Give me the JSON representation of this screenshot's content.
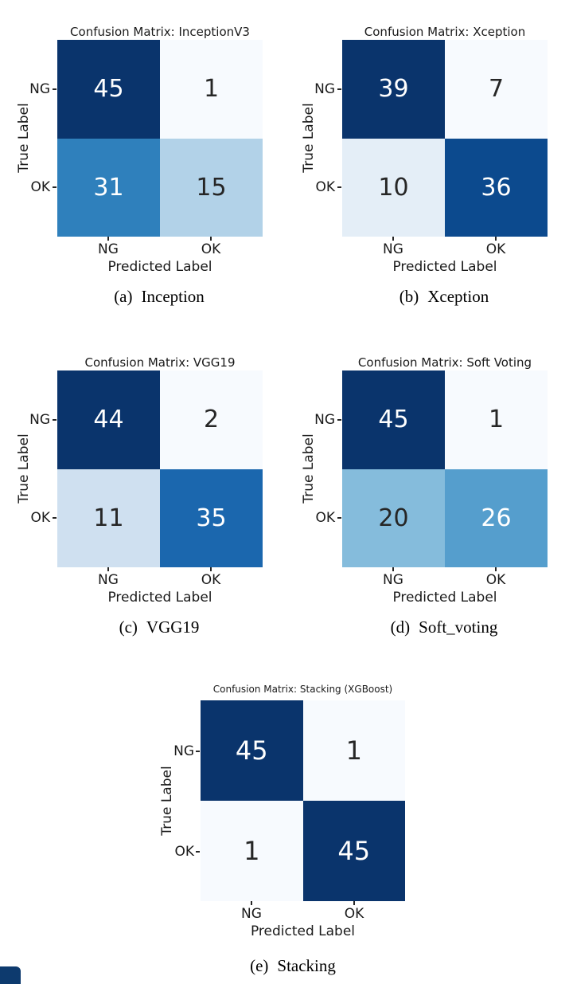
{
  "figure": {
    "background": "#ffffff",
    "axis_text_color": "#1a1a1a",
    "cell_text_light": "#ffffff",
    "cell_text_dark": "#262626",
    "tick_mark_color": "#262626",
    "corner_artifact_color": "#0d3a6e"
  },
  "chart_data": [
    {
      "type": "heatmap",
      "title": "Confusion Matrix: InceptionV3",
      "caption": "(a) Inception",
      "x_categories": [
        "NG",
        "OK"
      ],
      "y_categories": [
        "NG",
        "OK"
      ],
      "xlabel": "Predicted Label",
      "ylabel": "True Label",
      "matrix": [
        [
          45,
          1
        ],
        [
          31,
          15
        ]
      ],
      "colormap": "Blues",
      "legend": "none",
      "grid": false
    },
    {
      "type": "heatmap",
      "title": "Confusion Matrix: Xception",
      "caption": "(b) Xception",
      "x_categories": [
        "NG",
        "OK"
      ],
      "y_categories": [
        "NG",
        "OK"
      ],
      "xlabel": "Predicted Label",
      "ylabel": "True Label",
      "matrix": [
        [
          39,
          7
        ],
        [
          10,
          36
        ]
      ],
      "colormap": "Blues",
      "legend": "none",
      "grid": false
    },
    {
      "type": "heatmap",
      "title": "Confusion Matrix: VGG19",
      "caption": "(c) VGG19",
      "x_categories": [
        "NG",
        "OK"
      ],
      "y_categories": [
        "NG",
        "OK"
      ],
      "xlabel": "Predicted Label",
      "ylabel": "True Label",
      "matrix": [
        [
          44,
          2
        ],
        [
          11,
          35
        ]
      ],
      "colormap": "Blues",
      "legend": "none",
      "grid": false
    },
    {
      "type": "heatmap",
      "title": "Confusion Matrix: Soft Voting",
      "caption": "(d) Soft_voting",
      "x_categories": [
        "NG",
        "OK"
      ],
      "y_categories": [
        "NG",
        "OK"
      ],
      "xlabel": "Predicted Label",
      "ylabel": "True Label",
      "matrix": [
        [
          45,
          1
        ],
        [
          20,
          26
        ]
      ],
      "colormap": "Blues",
      "legend": "none",
      "grid": false
    },
    {
      "type": "heatmap",
      "title": "Confusion Matrix: Stacking (XGBoost)",
      "caption": "(e) Stacking",
      "x_categories": [
        "NG",
        "OK"
      ],
      "y_categories": [
        "NG",
        "OK"
      ],
      "xlabel": "Predicted Label",
      "ylabel": "True Label",
      "matrix": [
        [
          45,
          1
        ],
        [
          1,
          45
        ]
      ],
      "colormap": "Blues",
      "legend": "none",
      "grid": false
    }
  ],
  "panels": [
    {
      "id": "a",
      "title": "Confusion Matrix: InceptionV3",
      "caption_index": "(a)",
      "caption_label": "Inception",
      "xlabel": "Predicted Label",
      "ylabel": "True Label",
      "x_ticks": [
        "NG",
        "OK"
      ],
      "y_ticks": [
        "NG",
        "OK"
      ],
      "cells": [
        {
          "value": "45",
          "bg": "#0a346c",
          "fg": "#ffffff"
        },
        {
          "value": "1",
          "bg": "#f7fafe",
          "fg": "#262626"
        },
        {
          "value": "31",
          "bg": "#2f80bc",
          "fg": "#ffffff"
        },
        {
          "value": "15",
          "bg": "#b2d2e8",
          "fg": "#262626"
        }
      ]
    },
    {
      "id": "b",
      "title": "Confusion Matrix: Xception",
      "caption_index": "(b)",
      "caption_label": "Xception",
      "xlabel": "Predicted Label",
      "ylabel": "True Label",
      "x_ticks": [
        "NG",
        "OK"
      ],
      "y_ticks": [
        "NG",
        "OK"
      ],
      "cells": [
        {
          "value": "39",
          "bg": "#0a346c",
          "fg": "#ffffff"
        },
        {
          "value": "7",
          "bg": "#f7fafe",
          "fg": "#262626"
        },
        {
          "value": "10",
          "bg": "#e4eef7",
          "fg": "#262626"
        },
        {
          "value": "36",
          "bg": "#0c4a8e",
          "fg": "#ffffff"
        }
      ]
    },
    {
      "id": "c",
      "title": "Confusion Matrix: VGG19",
      "caption_index": "(c)",
      "caption_label": "VGG19",
      "xlabel": "Predicted Label",
      "ylabel": "True Label",
      "x_ticks": [
        "NG",
        "OK"
      ],
      "y_ticks": [
        "NG",
        "OK"
      ],
      "cells": [
        {
          "value": "44",
          "bg": "#0a346c",
          "fg": "#ffffff"
        },
        {
          "value": "2",
          "bg": "#f7fafe",
          "fg": "#262626"
        },
        {
          "value": "11",
          "bg": "#cfe0f0",
          "fg": "#262626"
        },
        {
          "value": "35",
          "bg": "#1b67ae",
          "fg": "#ffffff"
        }
      ]
    },
    {
      "id": "d",
      "title": "Confusion Matrix: Soft Voting",
      "caption_index": "(d)",
      "caption_label": "Soft_voting",
      "xlabel": "Predicted Label",
      "ylabel": "True Label",
      "x_ticks": [
        "NG",
        "OK"
      ],
      "y_ticks": [
        "NG",
        "OK"
      ],
      "cells": [
        {
          "value": "45",
          "bg": "#0a346c",
          "fg": "#ffffff"
        },
        {
          "value": "1",
          "bg": "#f7fafe",
          "fg": "#262626"
        },
        {
          "value": "20",
          "bg": "#85bcdc",
          "fg": "#262626"
        },
        {
          "value": "26",
          "bg": "#559ecd",
          "fg": "#ffffff"
        }
      ]
    },
    {
      "id": "e",
      "title": "Confusion Matrix: Stacking (XGBoost)",
      "caption_index": "(e)",
      "caption_label": "Stacking",
      "xlabel": "Predicted Label",
      "ylabel": "True Label",
      "x_ticks": [
        "NG",
        "OK"
      ],
      "y_ticks": [
        "NG",
        "OK"
      ],
      "cells": [
        {
          "value": "45",
          "bg": "#0a346c",
          "fg": "#ffffff"
        },
        {
          "value": "1",
          "bg": "#f7fafe",
          "fg": "#262626"
        },
        {
          "value": "1",
          "bg": "#f7fafe",
          "fg": "#262626"
        },
        {
          "value": "45",
          "bg": "#0a346c",
          "fg": "#ffffff"
        }
      ]
    }
  ]
}
